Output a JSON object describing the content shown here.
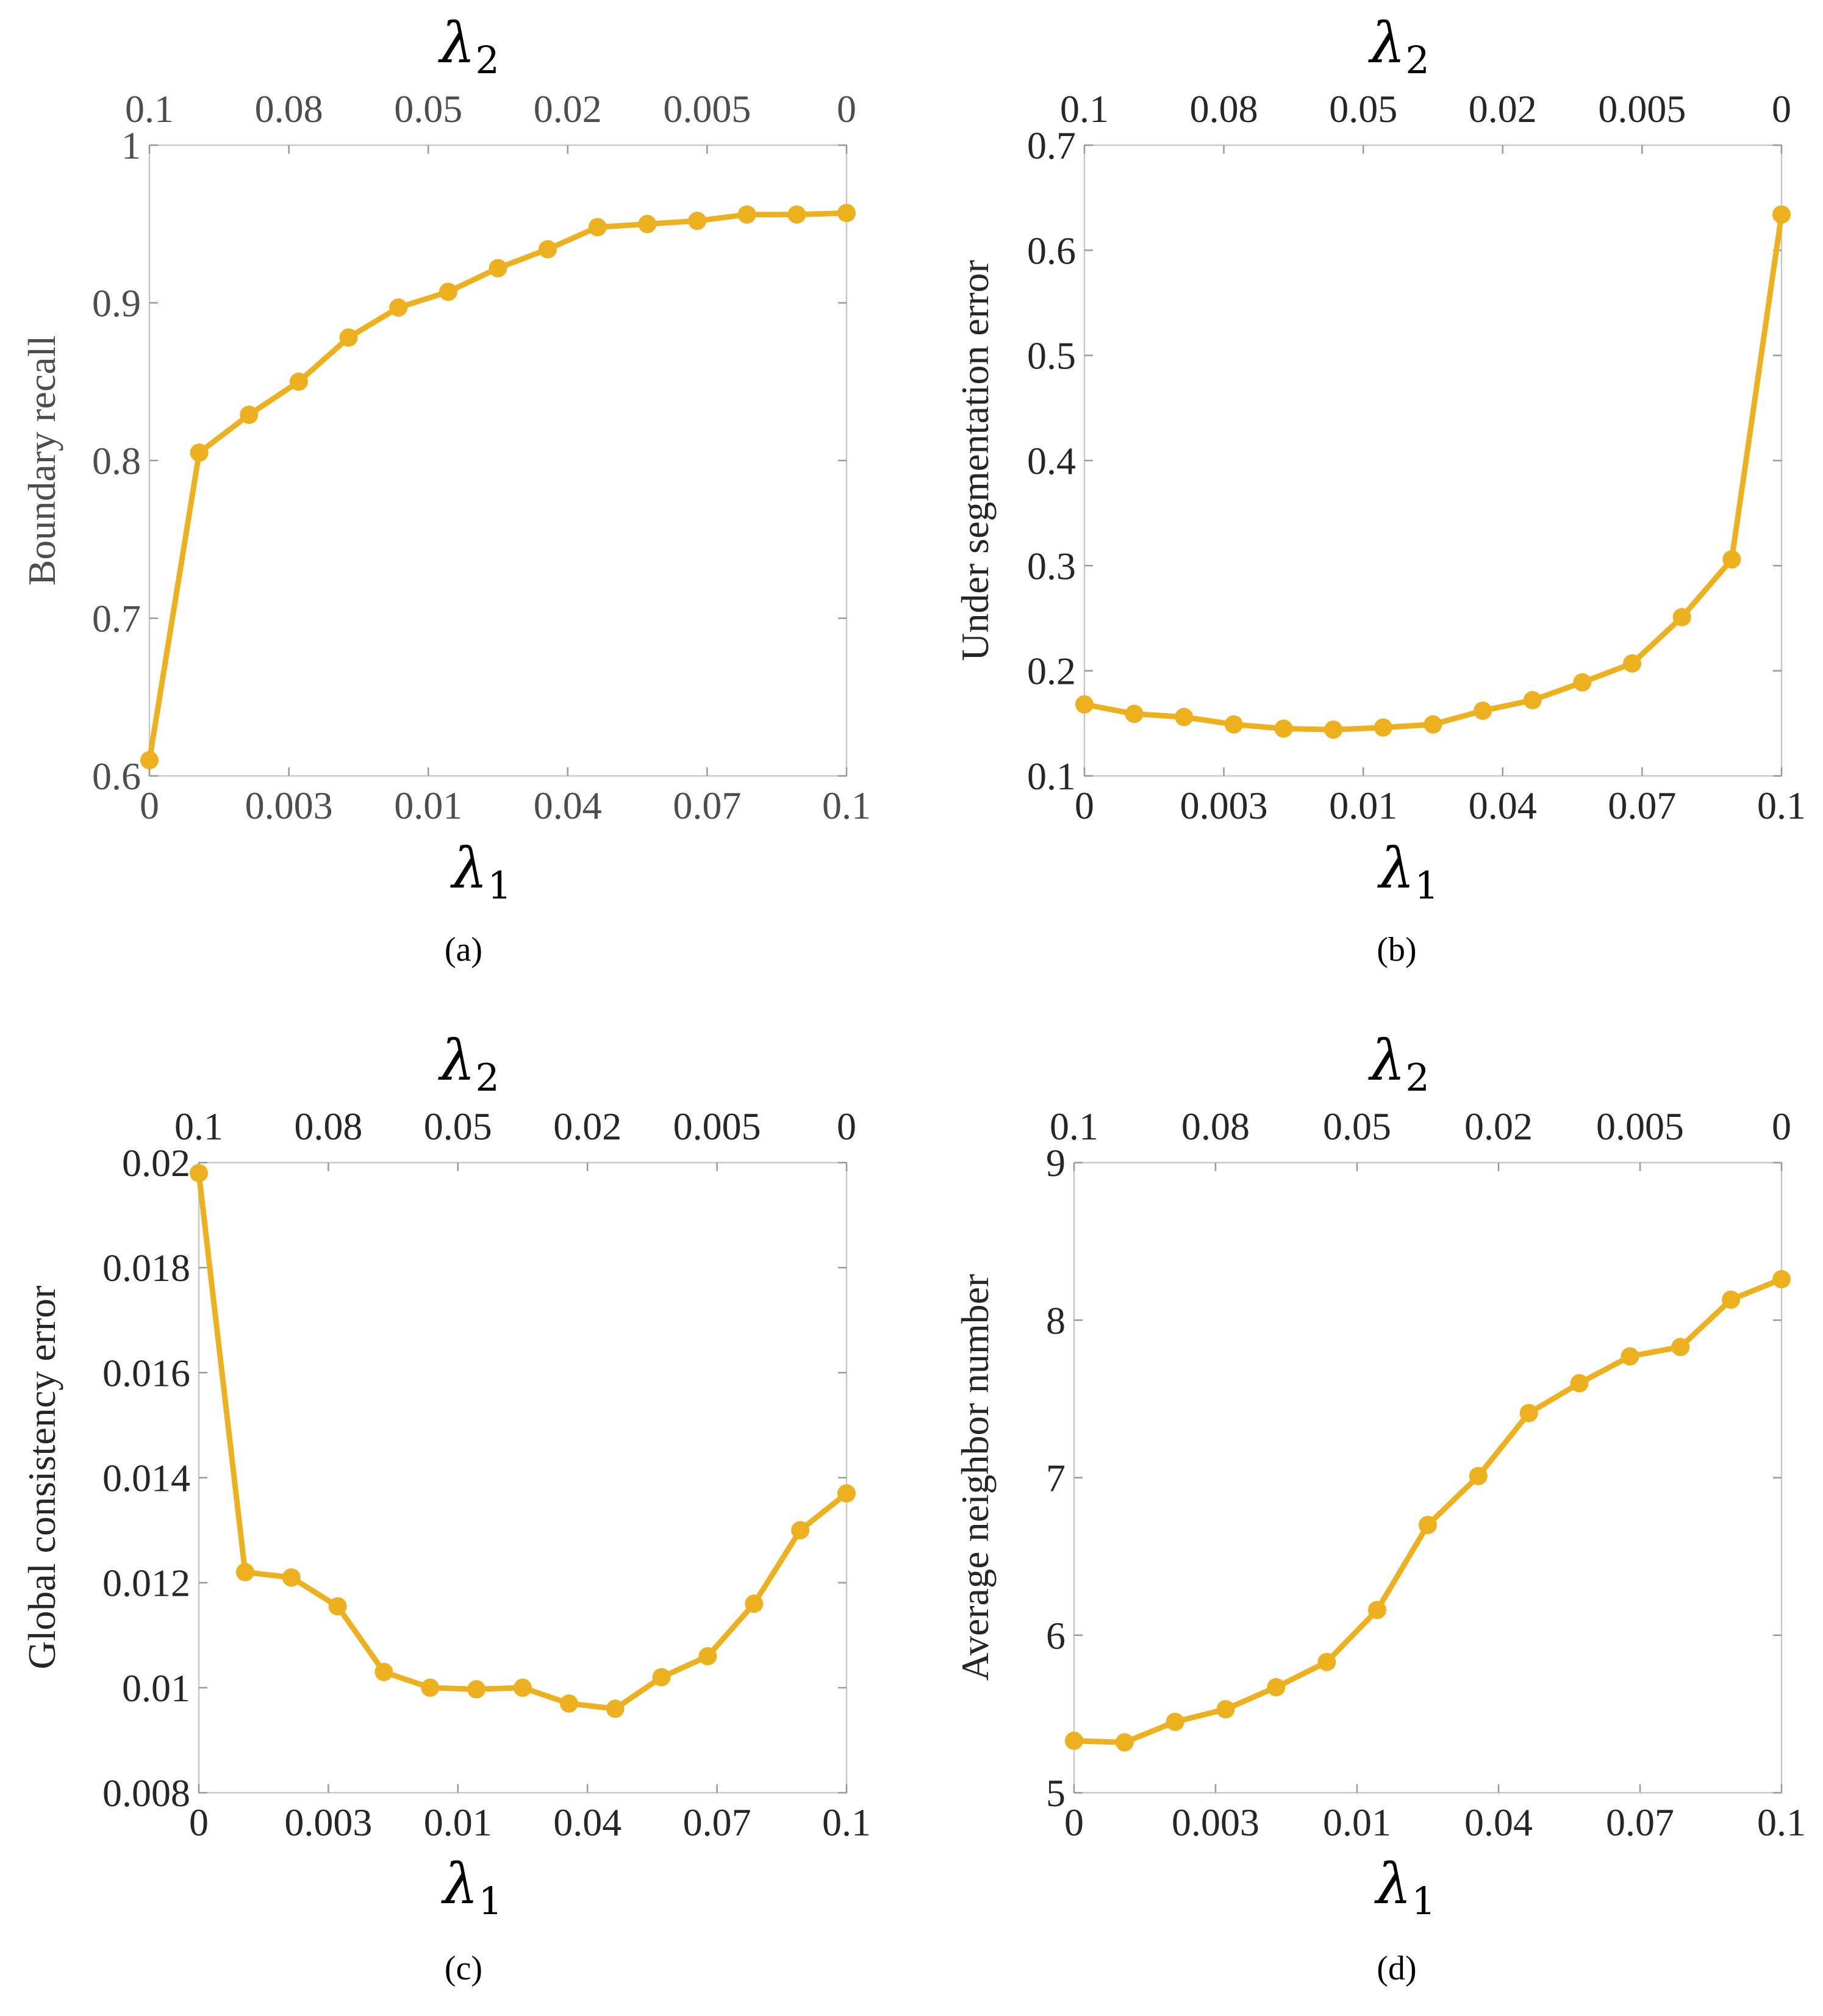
{
  "chart_data": [
    {
      "type": "line",
      "caption": "(a)",
      "ylabel": "Boundary recall",
      "xlabel_symbol": "λ",
      "xlabel_sub": "1",
      "top_label_symbol": "λ",
      "top_label_sub": "2",
      "x_ticks": [
        "0",
        "0.003",
        "0.01",
        "0.04",
        "0.07",
        "0.1"
      ],
      "top_ticks": [
        "0.1",
        "0.08",
        "0.05",
        "0.02",
        "0.005",
        "0"
      ],
      "y_ticks": [
        "0.6",
        "0.7",
        "0.8",
        "0.9",
        "1"
      ],
      "ylim": [
        0.6,
        1.0
      ],
      "color": "#EDB120",
      "values": [
        0.61,
        0.805,
        0.829,
        0.85,
        0.878,
        0.897,
        0.907,
        0.922,
        0.934,
        0.948,
        0.95,
        0.952,
        0.956,
        0.956,
        0.957
      ]
    },
    {
      "type": "line",
      "caption": "(b)",
      "ylabel": "Under segmentation error",
      "xlabel_symbol": "λ",
      "xlabel_sub": "1",
      "top_label_symbol": "λ",
      "top_label_sub": "2",
      "x_ticks": [
        "0",
        "0.003",
        "0.01",
        "0.04",
        "0.07",
        "0.1"
      ],
      "top_ticks": [
        "0.1",
        "0.08",
        "0.05",
        "0.02",
        "0.005",
        "0"
      ],
      "y_ticks": [
        "0.1",
        "0.2",
        "0.3",
        "0.4",
        "0.5",
        "0.6",
        "0.7"
      ],
      "ylim": [
        0.1,
        0.7
      ],
      "color": "#EDB120",
      "values": [
        0.168,
        0.159,
        0.156,
        0.149,
        0.145,
        0.144,
        0.146,
        0.149,
        0.162,
        0.172,
        0.189,
        0.207,
        0.251,
        0.306,
        0.634
      ]
    },
    {
      "type": "line",
      "caption": "(c)",
      "ylabel": "Global consistency error",
      "xlabel_symbol": "λ",
      "xlabel_sub": "1",
      "top_label_symbol": "λ",
      "top_label_sub": "2",
      "x_ticks": [
        "0",
        "0.003",
        "0.01",
        "0.04",
        "0.07",
        "0.1"
      ],
      "top_ticks": [
        "0.1",
        "0.08",
        "0.05",
        "0.02",
        "0.005",
        "0"
      ],
      "y_ticks": [
        "0.008",
        "0.01",
        "0.012",
        "0.014",
        "0.016",
        "0.018",
        "0.02"
      ],
      "ylim": [
        0.008,
        0.02
      ],
      "color": "#EDB120",
      "values": [
        0.0198,
        0.0122,
        0.0121,
        0.01155,
        0.0103,
        0.01,
        0.00997,
        0.01,
        0.0097,
        0.0096,
        0.0102,
        0.0106,
        0.0116,
        0.013,
        0.0137
      ]
    },
    {
      "type": "line",
      "caption": "(d)",
      "ylabel": "Average neighbor number",
      "xlabel_symbol": "λ",
      "xlabel_sub": "1",
      "top_label_symbol": "λ",
      "top_label_sub": "2",
      "x_ticks": [
        "0",
        "0.003",
        "0.01",
        "0.04",
        "0.07",
        "0.1"
      ],
      "top_ticks": [
        "0.1",
        "0.08",
        "0.05",
        "0.02",
        "0.005",
        "0"
      ],
      "y_ticks": [
        "5",
        "6",
        "7",
        "8",
        "9"
      ],
      "ylim": [
        5,
        9
      ],
      "color": "#EDB120",
      "values": [
        5.33,
        5.32,
        5.45,
        5.53,
        5.67,
        5.83,
        6.16,
        6.7,
        7.01,
        7.41,
        7.6,
        7.77,
        7.83,
        8.13,
        8.26
      ]
    }
  ]
}
